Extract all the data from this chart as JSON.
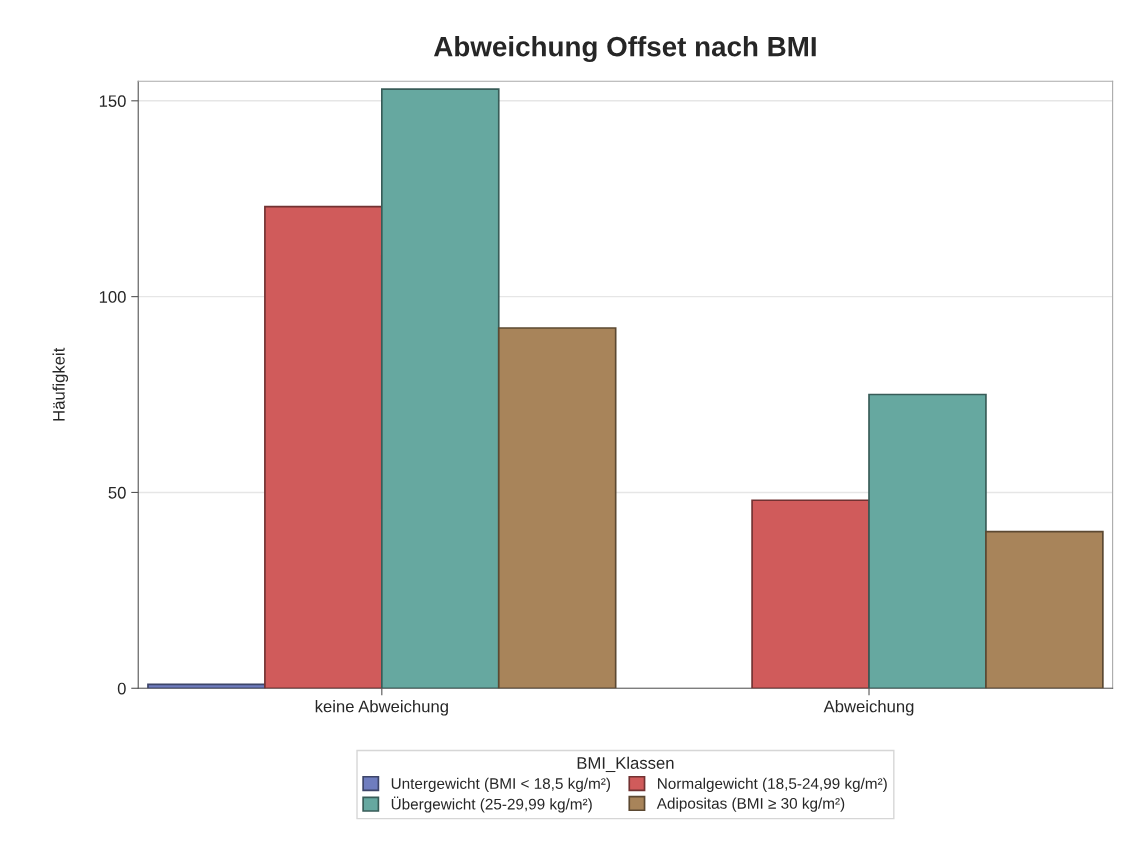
{
  "chart_data": {
    "type": "bar",
    "title": "Abweichung Offset nach BMI",
    "ylabel": "Häufigkeit",
    "legend_title": "BMI_Klassen",
    "categories": [
      "keine Abweichung",
      "Abweichung"
    ],
    "series": [
      {
        "name": "Untergewicht (BMI < 18,5 kg/m²)",
        "color": "#6f7dbf",
        "values": [
          1,
          null
        ]
      },
      {
        "name": "Normalgewicht (18,5-24,99 kg/m²)",
        "color": "#d05b5b",
        "values": [
          123,
          48
        ]
      },
      {
        "name": "Übergewicht (25-29,99 kg/m²)",
        "color": "#66a8a0",
        "values": [
          153,
          75
        ]
      },
      {
        "name": "Adipositas (BMI ≥ 30 kg/m²)",
        "color": "#a8845a",
        "values": [
          92,
          40
        ]
      }
    ],
    "ylim": [
      0,
      155
    ],
    "yticks": [
      0,
      50,
      100,
      150
    ],
    "grid": "y",
    "legend": "bottom"
  }
}
